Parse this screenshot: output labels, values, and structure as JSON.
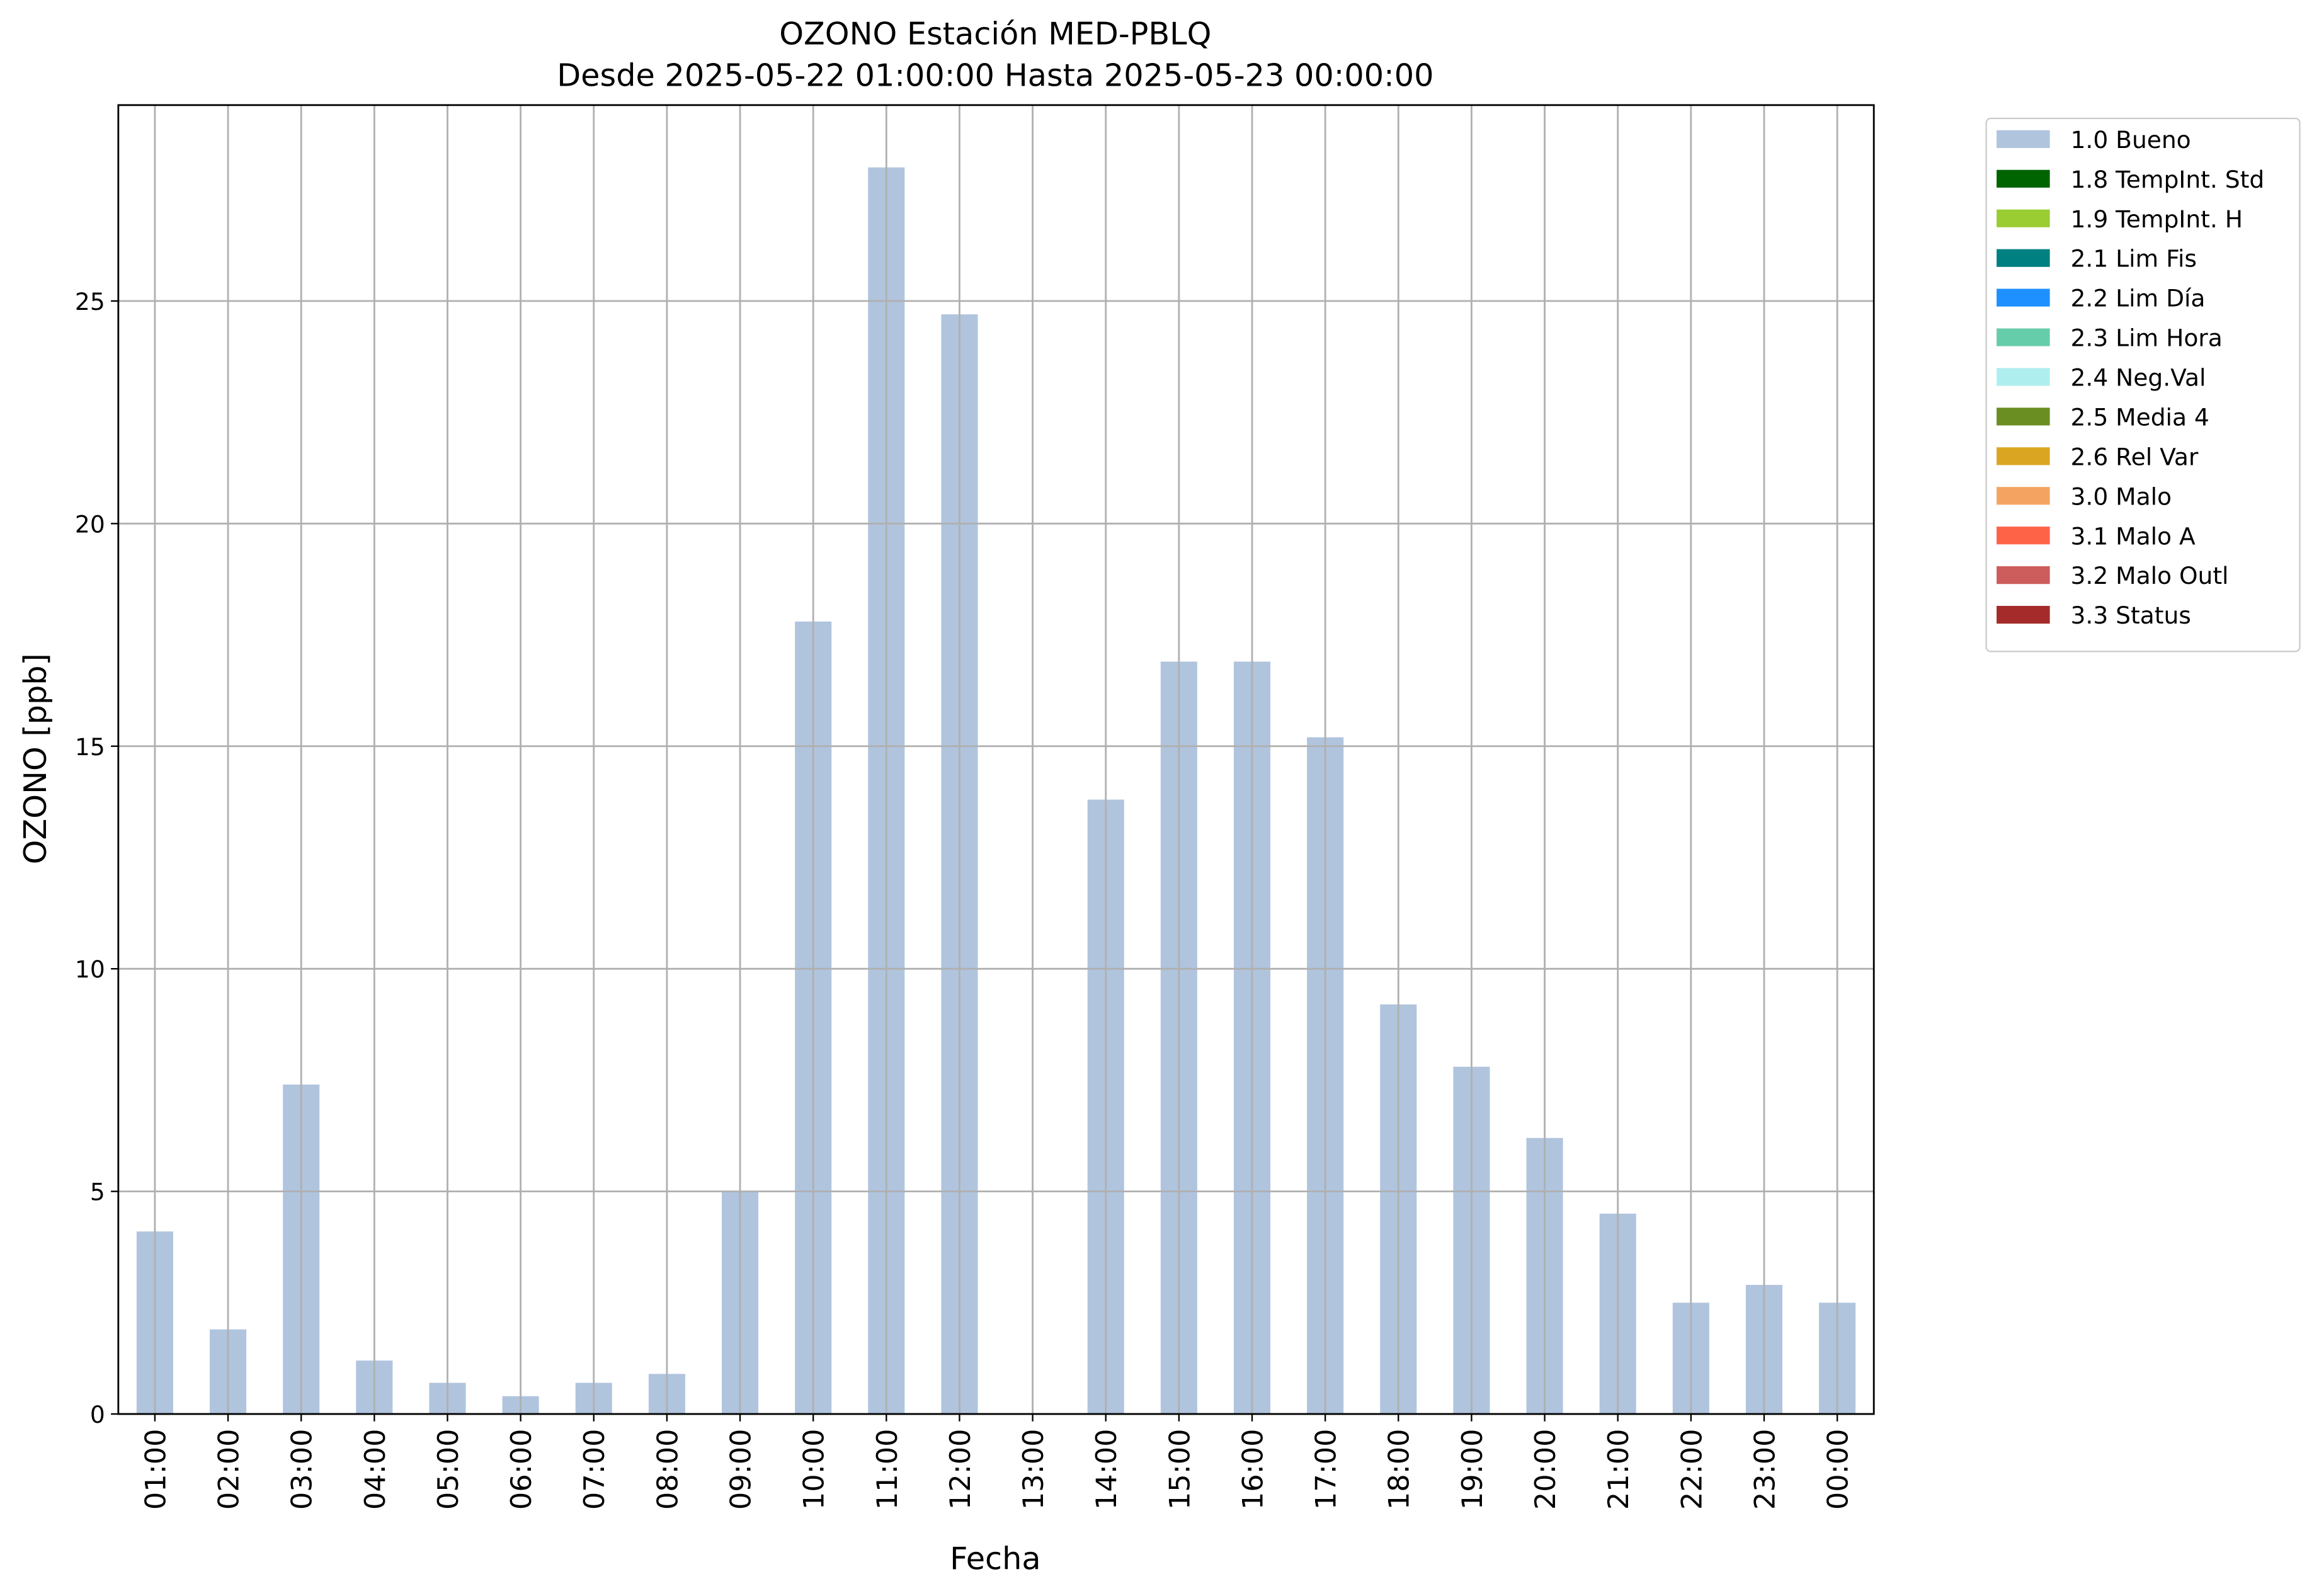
{
  "chart_data": {
    "type": "bar",
    "title": "OZONO Estación MED-PBLQ",
    "subtitle": "Desde 2025-05-22 01:00:00 Hasta 2025-05-23 00:00:00",
    "x_label": "Fecha",
    "y_label": "OZONO [ppb]",
    "categories": [
      "01:00",
      "02:00",
      "03:00",
      "04:00",
      "05:00",
      "06:00",
      "07:00",
      "08:00",
      "09:00",
      "10:00",
      "11:00",
      "12:00",
      "13:00",
      "14:00",
      "15:00",
      "16:00",
      "17:00",
      "18:00",
      "19:00",
      "20:00",
      "21:00",
      "22:00",
      "23:00",
      "00:00"
    ],
    "series": [
      {
        "name": "1.0 Bueno",
        "color": "#b0c4de",
        "values": [
          4.1,
          1.9,
          7.4,
          1.2,
          0.7,
          0.4,
          0.7,
          0.9,
          5.0,
          17.8,
          28.0,
          24.7,
          null,
          13.8,
          16.9,
          16.9,
          15.2,
          9.2,
          7.8,
          6.2,
          4.5,
          2.5,
          2.9,
          2.5
        ]
      },
      {
        "name": "1.8 TempInt. Std",
        "color": "#006400"
      },
      {
        "name": "1.9 TempInt. H",
        "color": "#9acd32"
      },
      {
        "name": "2.1 Lim Fis",
        "color": "#008080"
      },
      {
        "name": "2.2 Lim Día",
        "color": "#1e90ff"
      },
      {
        "name": "2.3 Lim Hora",
        "color": "#66cdaa"
      },
      {
        "name": "2.4 Neg.Val",
        "color": "#afeeee"
      },
      {
        "name": "2.5 Media 4",
        "color": "#6b8e23"
      },
      {
        "name": "2.6 Rel Var",
        "color": "#daa520"
      },
      {
        "name": "3.0 Malo",
        "color": "#f4a460"
      },
      {
        "name": "3.1 Malo A",
        "color": "#ff6347"
      },
      {
        "name": "3.2 Malo Outl",
        "color": "#cd5c5c"
      },
      {
        "name": "3.3 Status",
        "color": "#a52a2a"
      }
    ],
    "ylim": [
      0,
      29.4
    ],
    "yticks": [
      0,
      5,
      10,
      15,
      20,
      25
    ],
    "grid": true,
    "legend": "outside-upper-right"
  }
}
